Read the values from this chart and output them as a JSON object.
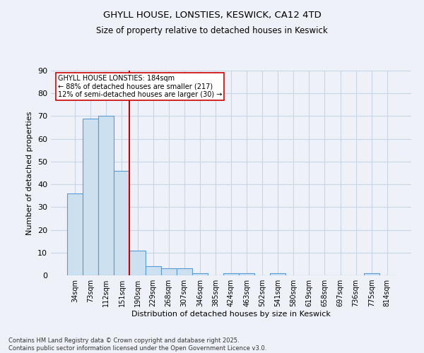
{
  "title1": "GHYLL HOUSE, LONSTIES, KESWICK, CA12 4TD",
  "title2": "Size of property relative to detached houses in Keswick",
  "xlabel": "Distribution of detached houses by size in Keswick",
  "ylabel": "Number of detached properties",
  "categories": [
    "34sqm",
    "73sqm",
    "112sqm",
    "151sqm",
    "190sqm",
    "229sqm",
    "268sqm",
    "307sqm",
    "346sqm",
    "385sqm",
    "424sqm",
    "463sqm",
    "502sqm",
    "541sqm",
    "580sqm",
    "619sqm",
    "658sqm",
    "697sqm",
    "736sqm",
    "775sqm",
    "814sqm"
  ],
  "values": [
    36,
    69,
    70,
    46,
    11,
    4,
    3,
    3,
    1,
    0,
    1,
    1,
    0,
    1,
    0,
    0,
    0,
    0,
    0,
    1,
    0
  ],
  "bar_color": "#cce0f0",
  "bar_edge_color": "#5b9bd5",
  "red_line_index": 4,
  "annotation_text": "GHYLL HOUSE LONSTIES: 184sqm\n← 88% of detached houses are smaller (217)\n12% of semi-detached houses are larger (30) →",
  "annotation_box_color": "#ffffff",
  "annotation_box_edge": "#cc0000",
  "red_line_color": "#cc0000",
  "ylim": [
    0,
    90
  ],
  "yticks": [
    0,
    10,
    20,
    30,
    40,
    50,
    60,
    70,
    80,
    90
  ],
  "footnote": "Contains HM Land Registry data © Crown copyright and database right 2025.\nContains public sector information licensed under the Open Government Licence v3.0.",
  "bg_color": "#eef2f8",
  "grid_color": "#c8d4e8"
}
